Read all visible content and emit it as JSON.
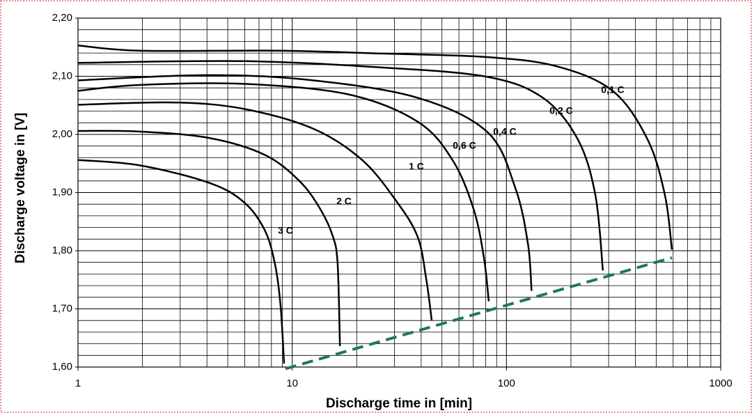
{
  "chart_data": {
    "type": "line",
    "xlabel": "Discharge time in [min]",
    "ylabel": "Discharge voltage in [V]",
    "xscale": "log",
    "xlim": [
      1,
      1000
    ],
    "xticks": [
      1,
      10,
      100,
      1000
    ],
    "ylim": [
      1.6,
      2.2
    ],
    "yticks": [
      {
        "value": 1.6,
        "label": "1,60"
      },
      {
        "value": 1.7,
        "label": "1,70"
      },
      {
        "value": 1.8,
        "label": "1,80"
      },
      {
        "value": 1.9,
        "label": "1,90"
      },
      {
        "value": 2.0,
        "label": "2,00"
      },
      {
        "value": 2.1,
        "label": "2,10"
      },
      {
        "value": 2.2,
        "label": "2,20"
      }
    ],
    "grid": true,
    "series": [
      {
        "name": "3 C",
        "color": "#000000",
        "x": [
          1,
          1.93,
          4.08,
          5.93,
          7.43,
          8.32,
          8.83,
          9.16
        ],
        "values": [
          1.956,
          1.947,
          1.917,
          1.884,
          1.836,
          1.776,
          1.704,
          1.606
        ]
      },
      {
        "name": "2 C",
        "color": "#000000",
        "x": [
          1,
          1.93,
          4.08,
          7.43,
          10.8,
          13.5,
          15.5,
          16.3,
          16.7
        ],
        "values": [
          2.006,
          2.005,
          1.994,
          1.965,
          1.92,
          1.872,
          1.824,
          1.776,
          1.636
        ]
      },
      {
        "name": "1 C",
        "color": "#000000",
        "x": [
          1,
          2.81,
          5.93,
          12.5,
          21.2,
          30.8,
          38.5,
          42.2,
          44.8
        ],
        "values": [
          2.051,
          2.055,
          2.044,
          2.01,
          1.956,
          1.884,
          1.824,
          1.752,
          1.68
        ]
      },
      {
        "name": "0,6 C",
        "color": "#000000",
        "x": [
          1,
          1.93,
          5.93,
          18.2,
          38.5,
          56,
          70.2,
          78.5,
          82.7
        ],
        "values": [
          2.075,
          2.085,
          2.087,
          2.069,
          2.022,
          1.956,
          1.872,
          1.788,
          1.713
        ]
      },
      {
        "name": "0,4 C",
        "color": "#000000",
        "x": [
          1,
          4.08,
          12.5,
          38.5,
          81.5,
          110,
          126,
          131
        ],
        "values": [
          2.093,
          2.102,
          2.093,
          2.063,
          2.004,
          1.908,
          1.812,
          1.731
        ]
      },
      {
        "name": "0,2 C",
        "color": "#000000",
        "x": [
          1,
          5.93,
          26.5,
          81.5,
          148,
          215,
          260,
          282
        ],
        "values": [
          2.123,
          2.126,
          2.115,
          2.099,
          2.063,
          1.992,
          1.896,
          1.766
        ]
      },
      {
        "name": "0,1 C",
        "color": "#000000",
        "x": [
          1,
          1.93,
          8.63,
          26.5,
          81.5,
          172,
          313,
          455,
          549,
          592
        ],
        "values": [
          2.153,
          2.144,
          2.144,
          2.139,
          2.133,
          2.117,
          2.075,
          1.992,
          1.896,
          1.802
        ]
      },
      {
        "color": "#1e7a4a",
        "dashed": true,
        "x": [
          9.3,
          592
        ],
        "values": [
          1.597,
          1.788
        ]
      }
    ]
  }
}
